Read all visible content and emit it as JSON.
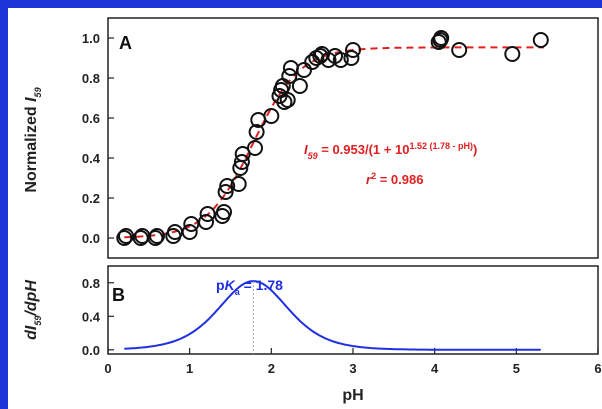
{
  "chart_data": [
    {
      "type": "scatter",
      "panel_label": "A",
      "ylabel_main": "Normalized ",
      "ylabel_var": "I",
      "ylabel_sub": "59",
      "xlim": [
        0,
        6
      ],
      "ylim": [
        -0.1,
        1.1
      ],
      "yticks": [
        "0.0",
        "0.2",
        "0.4",
        "0.6",
        "0.8",
        "1.0"
      ],
      "ytick_values": [
        0,
        0.2,
        0.4,
        0.6,
        0.8,
        1.0
      ],
      "fit": {
        "A": 0.953,
        "n": 1.52,
        "pKa": 1.78,
        "color": "#e02020",
        "style": "dashed"
      },
      "equation": {
        "var": "I",
        "sub": "59",
        "main": " = 0.953/(1 + 10",
        "exponent": "1.52 (1.78 - pH)",
        "close": ")"
      },
      "r2": {
        "var": "r",
        "sup": "2",
        "value": " = 0.986"
      },
      "points": [
        {
          "x": 0.2,
          "y": 0.0
        },
        {
          "x": 0.22,
          "y": 0.01
        },
        {
          "x": 0.4,
          "y": 0.0
        },
        {
          "x": 0.42,
          "y": 0.01
        },
        {
          "x": 0.58,
          "y": 0.0
        },
        {
          "x": 0.6,
          "y": 0.01
        },
        {
          "x": 0.8,
          "y": 0.01
        },
        {
          "x": 0.82,
          "y": 0.03
        },
        {
          "x": 1.0,
          "y": 0.03
        },
        {
          "x": 1.02,
          "y": 0.07
        },
        {
          "x": 1.2,
          "y": 0.08
        },
        {
          "x": 1.22,
          "y": 0.12
        },
        {
          "x": 1.4,
          "y": 0.11
        },
        {
          "x": 1.42,
          "y": 0.13
        },
        {
          "x": 1.44,
          "y": 0.23
        },
        {
          "x": 1.46,
          "y": 0.26
        },
        {
          "x": 1.6,
          "y": 0.27
        },
        {
          "x": 1.62,
          "y": 0.35
        },
        {
          "x": 1.64,
          "y": 0.38
        },
        {
          "x": 1.65,
          "y": 0.42
        },
        {
          "x": 1.8,
          "y": 0.45
        },
        {
          "x": 1.82,
          "y": 0.53
        },
        {
          "x": 1.84,
          "y": 0.59
        },
        {
          "x": 2.0,
          "y": 0.61
        },
        {
          "x": 2.1,
          "y": 0.71
        },
        {
          "x": 2.12,
          "y": 0.74
        },
        {
          "x": 2.14,
          "y": 0.76
        },
        {
          "x": 2.16,
          "y": 0.68
        },
        {
          "x": 2.2,
          "y": 0.69
        },
        {
          "x": 2.22,
          "y": 0.81
        },
        {
          "x": 2.24,
          "y": 0.85
        },
        {
          "x": 2.35,
          "y": 0.76
        },
        {
          "x": 2.4,
          "y": 0.84
        },
        {
          "x": 2.5,
          "y": 0.88
        },
        {
          "x": 2.55,
          "y": 0.9
        },
        {
          "x": 2.6,
          "y": 0.91
        },
        {
          "x": 2.62,
          "y": 0.92
        },
        {
          "x": 2.7,
          "y": 0.89
        },
        {
          "x": 2.78,
          "y": 0.91
        },
        {
          "x": 2.85,
          "y": 0.89
        },
        {
          "x": 2.98,
          "y": 0.9
        },
        {
          "x": 3.0,
          "y": 0.94
        },
        {
          "x": 4.05,
          "y": 0.98
        },
        {
          "x": 4.07,
          "y": 0.99
        },
        {
          "x": 4.08,
          "y": 1.0
        },
        {
          "x": 4.3,
          "y": 0.94
        },
        {
          "x": 4.95,
          "y": 0.92
        },
        {
          "x": 5.3,
          "y": 0.99
        }
      ]
    },
    {
      "type": "line",
      "panel_label": "B",
      "ylabel_pre": "dI",
      "ylabel_sub": "59",
      "ylabel_post": "/dpH",
      "xlabel": "pH",
      "xlim": [
        0,
        6
      ],
      "ylim": [
        -0.05,
        1.0
      ],
      "yticks": [
        "0.0",
        "0.4",
        "0.8"
      ],
      "ytick_values": [
        0,
        0.4,
        0.8
      ],
      "xticks": [
        "0",
        "1",
        "2",
        "3",
        "4",
        "5",
        "6"
      ],
      "xtick_values": [
        0,
        1,
        2,
        3,
        4,
        5,
        6
      ],
      "curve": {
        "x_start": 0.2,
        "x_end": 5.3,
        "peak": 0.82,
        "center": 1.78,
        "n": 1.52,
        "color": "#2030e0"
      },
      "marker_line": {
        "x": 1.78,
        "style": "dotted"
      },
      "annotation": {
        "prefix": "p",
        "var": "K",
        "sub": "a",
        "value": " = 1.78"
      }
    }
  ]
}
